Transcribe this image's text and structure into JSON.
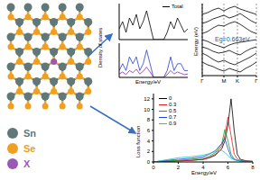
{
  "structure": {
    "legend": [
      {
        "label": "Sn",
        "color": "#607878"
      },
      {
        "label": "Se",
        "color": "#f0a020"
      },
      {
        "label": "X",
        "color": "#9b59b6"
      }
    ]
  },
  "chart_data": [
    {
      "type": "line",
      "y_label": "Density of states",
      "x": [
        -2,
        -1.8,
        -1.6,
        -1.4,
        -1.2,
        -1,
        -0.8,
        -0.6,
        -0.4,
        -0.2,
        0,
        0.2,
        0.4,
        0.6,
        0.8,
        1,
        1.2,
        1.4,
        1.6,
        1.8,
        2
      ],
      "series": [
        {
          "name": "Total",
          "color": "#000000",
          "values": [
            3,
            5,
            2,
            6,
            4,
            7,
            3,
            5,
            8,
            4,
            0,
            0,
            0,
            0,
            2,
            5,
            3,
            6,
            4,
            2,
            3
          ]
        }
      ],
      "xlim": [
        -2,
        2
      ],
      "ylim": [
        0,
        10
      ],
      "tick_labels": false,
      "legend": "upper right"
    },
    {
      "type": "line",
      "x_label": "Energy/eV",
      "x": [
        -2,
        -1.8,
        -1.6,
        -1.4,
        -1.2,
        -1,
        -0.8,
        -0.6,
        -0.4,
        -0.2,
        0,
        0.2,
        0.4,
        0.6,
        0.8,
        1,
        1.2,
        1.4,
        1.6,
        1.8,
        2
      ],
      "series": [
        {
          "color": "#1f3fd0",
          "values": [
            1,
            2,
            1,
            3,
            2,
            3,
            1,
            2,
            4,
            2,
            0,
            0,
            0,
            0,
            1,
            3,
            1,
            2,
            2,
            1,
            1
          ]
        },
        {
          "color": "#a020c0",
          "values": [
            0.5,
            0.8,
            0.4,
            1,
            0.7,
            1.2,
            0.5,
            0.9,
            1.5,
            0.8,
            0,
            0,
            0,
            0,
            0.4,
            1,
            0.5,
            0.8,
            0.6,
            0.4,
            0.5
          ]
        }
      ],
      "xlim": [
        -2,
        2
      ],
      "ylim": [
        0,
        5
      ],
      "tick_labels": false
    },
    {
      "type": "line",
      "y_label": "Energy (eV)",
      "annotation": "Eg=0.663eV",
      "x": [
        0,
        0.1,
        0.2,
        0.3,
        0.4,
        0.5,
        0.6,
        0.7,
        0.8,
        0.9,
        1
      ],
      "series": [
        {
          "color": "#000000",
          "values": [
            0,
            -0.2,
            -0.5,
            -0.7,
            -0.9,
            -0.6,
            -0.4,
            -0.3,
            -0.2,
            -0.1,
            0
          ]
        },
        {
          "color": "#000000",
          "values": [
            -0.8,
            -1,
            -1.3,
            -1.5,
            -1.4,
            -1.2,
            -1.5,
            -1.7,
            -1.3,
            -1,
            -0.8
          ]
        },
        {
          "color": "#000000",
          "values": [
            -1.5,
            -1.8,
            -2.2,
            -2.5,
            -2.3,
            -2.6,
            -2.8,
            -2.5,
            -2.2,
            -1.9,
            -1.5
          ]
        },
        {
          "color": "#000000",
          "values": [
            -2.5,
            -2.8,
            -3,
            -3.3,
            -3.5,
            -3.2,
            -3.4,
            -3.6,
            -3.2,
            -2.9,
            -2.5
          ]
        },
        {
          "color": "#000000",
          "values": [
            0.663,
            0.9,
            1.3,
            1.6,
            1.5,
            1.8,
            2,
            1.7,
            1.3,
            0.9,
            0.663
          ]
        },
        {
          "color": "#000000",
          "values": [
            1.8,
            2,
            2.3,
            2.5,
            2.7,
            2.4,
            2.6,
            2.9,
            2.5,
            2.1,
            1.8
          ]
        },
        {
          "color": "#000000",
          "values": [
            2.8,
            3,
            3.3,
            3.5,
            3.2,
            3.5,
            3.7,
            3.4,
            3.2,
            3,
            2.8
          ]
        }
      ],
      "xlim": [
        0,
        1
      ],
      "xticks": [
        {
          "value": 0,
          "label": "Γ"
        },
        {
          "value": 0.4,
          "label": "M"
        },
        {
          "value": 0.65,
          "label": "K"
        },
        {
          "value": 1,
          "label": "Γ"
        }
      ],
      "ylim": [
        -4,
        4
      ],
      "tick_labels": "x",
      "grid": true
    },
    {
      "type": "line",
      "y_label": "Loss function",
      "x_label": "Energy/eV",
      "x": [
        0,
        1,
        2,
        3,
        4,
        4.5,
        5,
        5.5,
        5.75,
        6,
        6.25,
        6.5,
        6.75,
        7,
        7.5,
        8
      ],
      "series": [
        {
          "name": "0",
          "color": "#000000",
          "values": [
            0,
            0.1,
            0.2,
            0.3,
            0.5,
            0.8,
            1.3,
            2.5,
            4,
            7,
            12,
            6,
            1.5,
            0.5,
            0.2,
            0.1
          ]
        },
        {
          "name": "0.3",
          "color": "#e02020",
          "values": [
            0,
            0.1,
            0.2,
            0.3,
            0.5,
            0.9,
            1.5,
            3,
            5,
            8.5,
            5,
            1.5,
            0.6,
            0.3,
            0.2,
            0.1
          ]
        },
        {
          "name": "0.5",
          "color": "#20a020",
          "values": [
            0,
            0.2,
            0.3,
            0.5,
            0.7,
            1.1,
            1.8,
            3.5,
            6.2,
            4,
            1.5,
            0.6,
            0.3,
            0.2,
            0.1,
            0.1
          ]
        },
        {
          "name": "0.7",
          "color": "#2040e0",
          "values": [
            0,
            0.3,
            0.5,
            0.7,
            1,
            1.5,
            2.2,
            3.5,
            4.5,
            2.5,
            1,
            0.5,
            0.3,
            0.2,
            0.1,
            0.1
          ]
        },
        {
          "name": "0.9",
          "color": "#20c0c0",
          "values": [
            0,
            0.4,
            0.8,
            1,
            1.3,
            1.6,
            2,
            2.2,
            1.8,
            1.2,
            0.7,
            0.4,
            0.3,
            0.2,
            0.1,
            0.1
          ]
        }
      ],
      "xlim": [
        0,
        8
      ],
      "xticks": [
        0,
        2,
        4,
        6,
        8
      ],
      "ylim": [
        0,
        13
      ],
      "yticks": [
        0,
        2,
        4,
        6,
        8,
        10,
        12
      ],
      "legend": "upper left"
    }
  ]
}
